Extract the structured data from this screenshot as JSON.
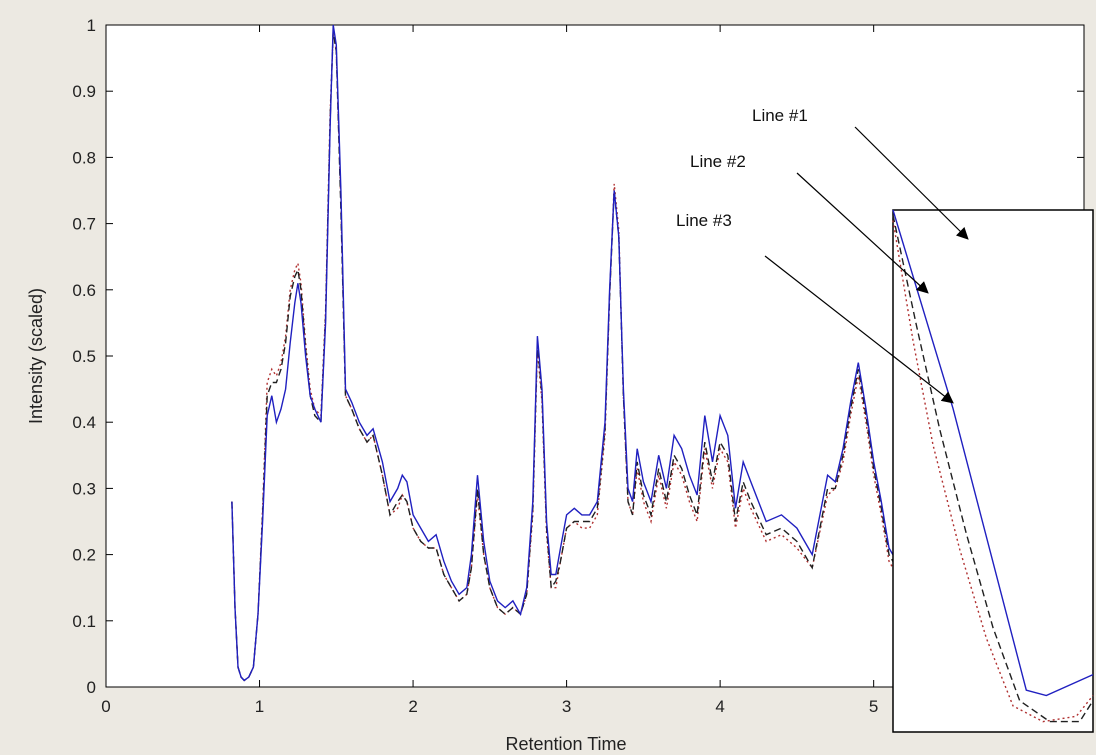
{
  "chart_data": {
    "type": "line",
    "xlabel": "Retention Time",
    "ylabel": "Intensity (scaled)",
    "xlim": [
      0,
      5.5
    ],
    "ylim": [
      0,
      1
    ],
    "xticks": [
      "0",
      "1",
      "2",
      "3",
      "4",
      "5"
    ],
    "yticks": [
      "0",
      "0.1",
      "0.2",
      "0.3",
      "0.4",
      "0.5",
      "0.6",
      "0.7",
      "0.8",
      "0.9",
      "1"
    ],
    "grid": false,
    "series": [
      {
        "name": "Line #1",
        "color": "#2020c0",
        "style": "solid",
        "x": [
          0.82,
          0.84,
          0.86,
          0.88,
          0.9,
          0.93,
          0.96,
          0.99,
          1.02,
          1.05,
          1.08,
          1.11,
          1.14,
          1.17,
          1.2,
          1.23,
          1.25,
          1.27,
          1.3,
          1.33,
          1.36,
          1.4,
          1.43,
          1.46,
          1.48,
          1.5,
          1.53,
          1.56,
          1.6,
          1.65,
          1.7,
          1.74,
          1.8,
          1.85,
          1.9,
          1.93,
          1.96,
          2.0,
          2.05,
          2.1,
          2.15,
          2.2,
          2.25,
          2.3,
          2.35,
          2.38,
          2.42,
          2.46,
          2.5,
          2.55,
          2.6,
          2.65,
          2.7,
          2.74,
          2.78,
          2.81,
          2.84,
          2.87,
          2.9,
          2.93,
          2.96,
          3.0,
          3.05,
          3.1,
          3.15,
          3.2,
          3.25,
          3.28,
          3.31,
          3.34,
          3.37,
          3.4,
          3.43,
          3.46,
          3.5,
          3.55,
          3.6,
          3.65,
          3.7,
          3.75,
          3.8,
          3.85,
          3.9,
          3.95,
          4.0,
          4.05,
          4.1,
          4.15,
          4.2,
          4.3,
          4.4,
          4.5,
          4.6,
          4.7,
          4.75,
          4.8,
          4.85,
          4.9,
          4.95,
          5.0,
          5.05,
          5.1,
          5.2,
          5.3,
          5.4,
          5.45,
          5.5
        ],
        "y": [
          0.28,
          0.12,
          0.03,
          0.015,
          0.01,
          0.015,
          0.03,
          0.11,
          0.25,
          0.41,
          0.44,
          0.4,
          0.42,
          0.45,
          0.52,
          0.58,
          0.61,
          0.58,
          0.5,
          0.44,
          0.42,
          0.4,
          0.55,
          0.85,
          1.0,
          0.97,
          0.75,
          0.45,
          0.43,
          0.4,
          0.38,
          0.39,
          0.34,
          0.28,
          0.3,
          0.32,
          0.31,
          0.26,
          0.24,
          0.22,
          0.23,
          0.19,
          0.16,
          0.14,
          0.15,
          0.2,
          0.32,
          0.22,
          0.16,
          0.13,
          0.12,
          0.13,
          0.11,
          0.15,
          0.28,
          0.53,
          0.45,
          0.25,
          0.17,
          0.17,
          0.21,
          0.26,
          0.27,
          0.26,
          0.26,
          0.28,
          0.4,
          0.6,
          0.75,
          0.68,
          0.45,
          0.3,
          0.28,
          0.36,
          0.31,
          0.28,
          0.35,
          0.3,
          0.38,
          0.36,
          0.32,
          0.29,
          0.41,
          0.34,
          0.41,
          0.38,
          0.27,
          0.34,
          0.31,
          0.25,
          0.26,
          0.24,
          0.2,
          0.32,
          0.31,
          0.36,
          0.43,
          0.49,
          0.42,
          0.34,
          0.28,
          0.21,
          0.17,
          0.13,
          0.09,
          0.08,
          0.1
        ]
      },
      {
        "name": "Line #2",
        "color": "#b03030",
        "style": "dotted",
        "x": [
          0.82,
          0.84,
          0.86,
          0.88,
          0.9,
          0.93,
          0.96,
          0.99,
          1.02,
          1.05,
          1.08,
          1.11,
          1.14,
          1.17,
          1.2,
          1.23,
          1.25,
          1.27,
          1.3,
          1.33,
          1.36,
          1.4,
          1.43,
          1.46,
          1.48,
          1.5,
          1.53,
          1.56,
          1.6,
          1.65,
          1.7,
          1.74,
          1.8,
          1.85,
          1.9,
          1.93,
          1.96,
          2.0,
          2.05,
          2.1,
          2.15,
          2.2,
          2.25,
          2.3,
          2.35,
          2.38,
          2.42,
          2.46,
          2.5,
          2.55,
          2.6,
          2.65,
          2.7,
          2.74,
          2.78,
          2.81,
          2.84,
          2.87,
          2.9,
          2.93,
          2.96,
          3.0,
          3.05,
          3.1,
          3.15,
          3.2,
          3.25,
          3.28,
          3.31,
          3.34,
          3.37,
          3.4,
          3.43,
          3.46,
          3.5,
          3.55,
          3.6,
          3.65,
          3.7,
          3.75,
          3.8,
          3.85,
          3.9,
          3.95,
          4.0,
          4.05,
          4.1,
          4.15,
          4.2,
          4.3,
          4.4,
          4.5,
          4.6,
          4.7,
          4.75,
          4.8,
          4.85,
          4.9,
          4.95,
          5.0,
          5.05,
          5.1,
          5.2,
          5.3,
          5.4,
          5.45,
          5.5
        ],
        "y": [
          0.28,
          0.12,
          0.03,
          0.015,
          0.01,
          0.015,
          0.03,
          0.11,
          0.27,
          0.46,
          0.48,
          0.47,
          0.49,
          0.53,
          0.6,
          0.63,
          0.64,
          0.61,
          0.52,
          0.45,
          0.42,
          0.41,
          0.57,
          0.87,
          0.99,
          0.96,
          0.73,
          0.44,
          0.42,
          0.39,
          0.37,
          0.38,
          0.32,
          0.26,
          0.27,
          0.29,
          0.28,
          0.24,
          0.22,
          0.21,
          0.21,
          0.17,
          0.15,
          0.13,
          0.14,
          0.18,
          0.29,
          0.2,
          0.15,
          0.12,
          0.11,
          0.12,
          0.11,
          0.14,
          0.26,
          0.51,
          0.43,
          0.23,
          0.15,
          0.15,
          0.19,
          0.24,
          0.25,
          0.24,
          0.24,
          0.26,
          0.38,
          0.59,
          0.76,
          0.69,
          0.44,
          0.28,
          0.26,
          0.33,
          0.28,
          0.25,
          0.32,
          0.27,
          0.34,
          0.32,
          0.28,
          0.25,
          0.36,
          0.3,
          0.36,
          0.34,
          0.24,
          0.3,
          0.27,
          0.22,
          0.23,
          0.21,
          0.18,
          0.29,
          0.3,
          0.34,
          0.41,
          0.47,
          0.4,
          0.32,
          0.26,
          0.19,
          0.15,
          0.12,
          0.08,
          0.07,
          0.09
        ]
      },
      {
        "name": "Line #3",
        "color": "#202020",
        "style": "dashed",
        "x": [
          0.82,
          0.84,
          0.86,
          0.88,
          0.9,
          0.93,
          0.96,
          0.99,
          1.02,
          1.05,
          1.08,
          1.11,
          1.14,
          1.17,
          1.2,
          1.23,
          1.25,
          1.27,
          1.3,
          1.33,
          1.36,
          1.4,
          1.43,
          1.46,
          1.48,
          1.5,
          1.53,
          1.56,
          1.6,
          1.65,
          1.7,
          1.74,
          1.8,
          1.85,
          1.9,
          1.93,
          1.96,
          2.0,
          2.05,
          2.1,
          2.15,
          2.2,
          2.25,
          2.3,
          2.35,
          2.38,
          2.42,
          2.46,
          2.5,
          2.55,
          2.6,
          2.65,
          2.7,
          2.74,
          2.78,
          2.81,
          2.84,
          2.87,
          2.9,
          2.93,
          2.96,
          3.0,
          3.05,
          3.1,
          3.15,
          3.2,
          3.25,
          3.28,
          3.31,
          3.34,
          3.37,
          3.4,
          3.43,
          3.46,
          3.5,
          3.55,
          3.6,
          3.65,
          3.7,
          3.75,
          3.8,
          3.85,
          3.9,
          3.95,
          4.0,
          4.05,
          4.1,
          4.15,
          4.2,
          4.3,
          4.4,
          4.5,
          4.6,
          4.7,
          4.75,
          4.8,
          4.85,
          4.9,
          4.95,
          5.0,
          5.05,
          5.1,
          5.2,
          5.3,
          5.4,
          5.45,
          5.5
        ],
        "y": [
          0.28,
          0.12,
          0.03,
          0.015,
          0.01,
          0.015,
          0.03,
          0.11,
          0.26,
          0.44,
          0.46,
          0.46,
          0.48,
          0.52,
          0.59,
          0.62,
          0.63,
          0.6,
          0.51,
          0.44,
          0.41,
          0.4,
          0.56,
          0.86,
          0.99,
          0.96,
          0.72,
          0.44,
          0.42,
          0.39,
          0.37,
          0.38,
          0.32,
          0.26,
          0.28,
          0.29,
          0.28,
          0.24,
          0.22,
          0.21,
          0.21,
          0.17,
          0.15,
          0.13,
          0.14,
          0.18,
          0.3,
          0.2,
          0.15,
          0.12,
          0.11,
          0.12,
          0.11,
          0.14,
          0.27,
          0.52,
          0.44,
          0.24,
          0.15,
          0.16,
          0.19,
          0.24,
          0.25,
          0.25,
          0.25,
          0.27,
          0.39,
          0.59,
          0.75,
          0.68,
          0.44,
          0.28,
          0.26,
          0.34,
          0.29,
          0.26,
          0.33,
          0.28,
          0.35,
          0.33,
          0.29,
          0.26,
          0.37,
          0.31,
          0.37,
          0.35,
          0.25,
          0.31,
          0.28,
          0.23,
          0.24,
          0.22,
          0.18,
          0.3,
          0.3,
          0.35,
          0.42,
          0.48,
          0.41,
          0.33,
          0.27,
          0.2,
          0.16,
          0.12,
          0.09,
          0.08,
          0.09
        ]
      }
    ],
    "annotations": [
      {
        "text": "Line #1",
        "target_series": 0
      },
      {
        "text": "Line #2",
        "target_series": 1
      },
      {
        "text": "Line #3",
        "target_series": 2
      }
    ],
    "inset": {
      "description_type": "zoom",
      "series": [
        {
          "name": "Line #1",
          "x": [
            0.0,
            0.18,
            0.4,
            0.46,
            0.6
          ],
          "y": [
            1.0,
            0.62,
            0.08,
            0.07,
            0.11
          ]
        },
        {
          "name": "Line #2",
          "x": [
            0.0,
            0.06,
            0.12,
            0.2,
            0.28,
            0.36,
            0.45,
            0.55,
            0.6
          ],
          "y": [
            0.98,
            0.75,
            0.55,
            0.35,
            0.18,
            0.05,
            0.02,
            0.03,
            0.07
          ]
        },
        {
          "name": "Line #3",
          "x": [
            0.0,
            0.07,
            0.14,
            0.22,
            0.3,
            0.38,
            0.47,
            0.56,
            0.6
          ],
          "y": [
            0.99,
            0.78,
            0.58,
            0.38,
            0.2,
            0.06,
            0.02,
            0.02,
            0.06
          ]
        }
      ]
    }
  }
}
